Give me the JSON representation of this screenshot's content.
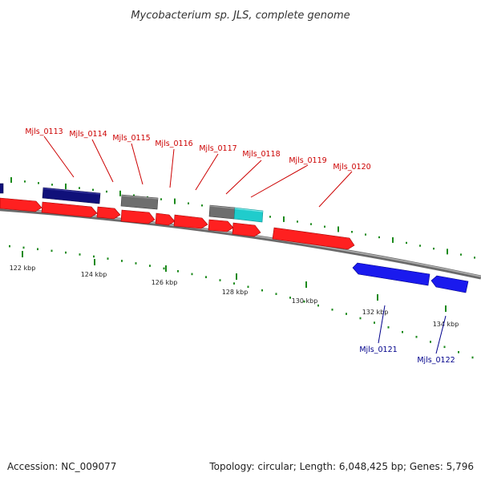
{
  "title": "Mycobacterium sp. JLS, complete genome",
  "footer": {
    "accession": "Accession: NC_009077",
    "summary": "Topology: circular; Length: 6,048,425 bp; Genes: 5,796"
  },
  "colors": {
    "backbone": "#8c8c8c",
    "tick": "#1c8a1c",
    "forward_gene": "#ff2020",
    "reverse_gene": "#1a1aee",
    "dark_gene": "#10107a",
    "other_gene": "#6e6e6e",
    "rna_gene": "#20cccc",
    "forward_label": "#cc0000",
    "reverse_label": "#00008b"
  },
  "scale_labels": [
    {
      "kbp": 122,
      "text": "122 kbp"
    },
    {
      "kbp": 124,
      "text": "124 kbp"
    },
    {
      "kbp": 126,
      "text": "126 kbp"
    },
    {
      "kbp": 128,
      "text": "128 kbp"
    },
    {
      "kbp": 130,
      "text": "130 kbp"
    },
    {
      "kbp": 132,
      "text": "132 kbp"
    },
    {
      "kbp": 134,
      "text": "134 kbp"
    }
  ],
  "gene_labels": [
    {
      "name": "Mjls_0113",
      "strand": "forward"
    },
    {
      "name": "Mjls_0114",
      "strand": "forward"
    },
    {
      "name": "Mjls_0115",
      "strand": "forward"
    },
    {
      "name": "Mjls_0116",
      "strand": "forward"
    },
    {
      "name": "Mjls_0117",
      "strand": "forward"
    },
    {
      "name": "Mjls_0118",
      "strand": "forward"
    },
    {
      "name": "Mjls_0119",
      "strand": "forward"
    },
    {
      "name": "Mjls_0120",
      "strand": "forward"
    },
    {
      "name": "Mjls_0121",
      "strand": "reverse"
    },
    {
      "name": "Mjls_0122",
      "strand": "reverse"
    }
  ]
}
